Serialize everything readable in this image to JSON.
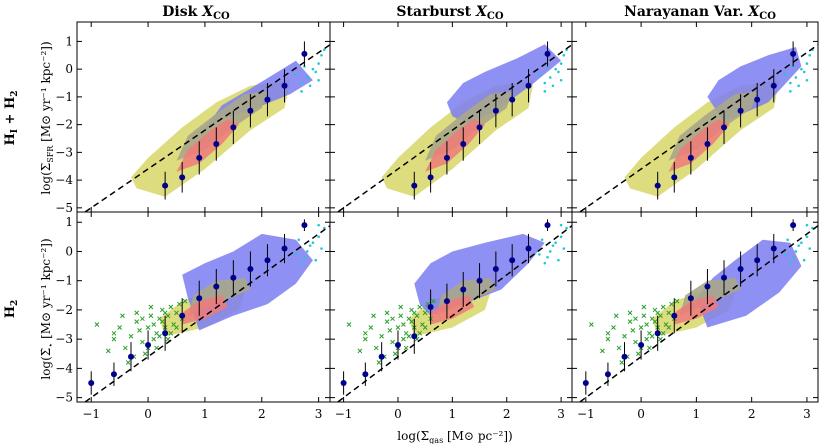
{
  "figure": {
    "columns": [
      "Disk X_CO",
      "Starburst X_CO",
      "Narayanan Var. X_CO"
    ],
    "column_titles": [
      {
        "main": "Disk ",
        "var": "X",
        "sub": "CO"
      },
      {
        "main": "Starburst ",
        "var": "X",
        "sub": "CO"
      },
      {
        "main": "Narayanan Var. ",
        "var": "X",
        "sub": "CO"
      }
    ],
    "rows": [
      {
        "label_main": "H",
        "label_sub1": "I",
        "label_plus": " + H",
        "label_sub2": "2",
        "ylabel": "log(Σ_SFR [M⊙ yr⁻¹ kpc⁻²])",
        "ylabel_left": "log(Σ",
        "ylabel_sub": "SFR",
        "ylabel_right": " [M⊙ yr⁻¹ kpc⁻²])"
      },
      {
        "label_main": "H",
        "label_sub1": "",
        "label_plus": "",
        "label_sub2": "2",
        "ylabel": "log(Σ̇_⋆ [M⊙ yr⁻¹ kpc⁻²])",
        "ylabel_left": "log(Σ̇",
        "ylabel_sub": "⋆",
        "ylabel_right": " [M⊙ yr⁻¹ kpc⁻²])"
      }
    ],
    "xlabel": "log(Σ_gas [M⊙ pc⁻²])",
    "xlabel_left": "log(Σ",
    "xlabel_sub": "gas",
    "xlabel_right": " [M⊙ pc⁻²])",
    "x_tick_labels": [
      "−1",
      "0",
      "1",
      "2",
      "3"
    ],
    "y_tick_labels_top": [
      "1",
      "0",
      "−1",
      "−2",
      "−3",
      "−4",
      "−5"
    ],
    "y_tick_labels_bottom": [
      "1",
      "0",
      "−1",
      "−2",
      "−3",
      "−4",
      "−5"
    ]
  },
  "colors": {
    "yellow": "#d9d870",
    "blue": "#7b7cf2",
    "red": "#f07a7a",
    "gray": "#a8a68a",
    "points": "#00008b",
    "cyan": "#20c8d2",
    "green": "#28a028",
    "line": "#000000"
  },
  "chart_data": {
    "type": "scatter",
    "xlim": [
      -1.25,
      3.2
    ],
    "ylim_top": [
      -5.15,
      1.7
    ],
    "ylim_bottom": [
      -5.15,
      1.35
    ],
    "reference_line": {
      "slope": 1.4,
      "intercept": -3.6,
      "style": "dashed"
    },
    "binned_points": {
      "x": [
        -1.0,
        -0.6,
        -0.3,
        0.0,
        0.3,
        0.6,
        0.9,
        1.2,
        1.5,
        1.8,
        2.1,
        2.4,
        2.75
      ],
      "top_disk": [
        null,
        null,
        null,
        null,
        -4.2,
        -3.9,
        -3.2,
        -2.7,
        -2.1,
        -1.5,
        -1.1,
        -0.6,
        0.55
      ],
      "top_sb": [
        null,
        null,
        null,
        null,
        -4.2,
        -3.9,
        -3.2,
        -2.7,
        -2.1,
        -1.5,
        -1.1,
        -0.6,
        0.55
      ],
      "top_nar": [
        null,
        null,
        null,
        null,
        -4.2,
        -3.9,
        -3.2,
        -2.7,
        -2.1,
        -1.5,
        -1.1,
        -0.6,
        0.55
      ],
      "bottom_disk": [
        -4.5,
        -4.2,
        -3.6,
        -3.2,
        -2.8,
        -2.2,
        -1.6,
        -1.2,
        -0.9,
        -0.6,
        -0.3,
        0.1,
        0.9
      ],
      "bottom_sb": [
        -4.5,
        -4.2,
        -3.6,
        -3.2,
        -2.9,
        -1.9,
        -1.7,
        -1.3,
        -1.0,
        -0.6,
        -0.3,
        0.1,
        0.9
      ],
      "bottom_nar": [
        -4.5,
        -4.2,
        -3.6,
        -3.2,
        -2.8,
        -2.2,
        -1.6,
        -1.2,
        -0.9,
        -0.6,
        -0.3,
        0.1,
        0.9
      ],
      "err_top": [
        0,
        0,
        0,
        0,
        0.5,
        0.55,
        0.6,
        0.6,
        0.6,
        0.6,
        0.6,
        0.6,
        0.45
      ],
      "err_bottom": [
        0.4,
        0.4,
        0.5,
        0.5,
        0.6,
        0.6,
        0.6,
        0.6,
        0.6,
        0.6,
        0.55,
        0.5,
        0.2
      ]
    },
    "top_regions": {
      "yellow": [
        [
          -0.2,
          -4.3
        ],
        [
          0.3,
          -4.6
        ],
        [
          1.0,
          -3.6
        ],
        [
          1.8,
          -2.2
        ],
        [
          2.4,
          -1.4
        ],
        [
          2.5,
          -0.4
        ],
        [
          1.8,
          -0.6
        ],
        [
          1.2,
          -1.2
        ],
        [
          0.6,
          -2.1
        ],
        [
          0.0,
          -3.2
        ],
        [
          -0.3,
          -3.9
        ]
      ],
      "gray": [
        [
          0.5,
          -3.3
        ],
        [
          1.0,
          -2.9
        ],
        [
          1.5,
          -2.1
        ],
        [
          2.0,
          -1.4
        ],
        [
          2.1,
          -0.8
        ],
        [
          1.7,
          -0.9
        ],
        [
          1.2,
          -1.6
        ],
        [
          0.7,
          -2.4
        ]
      ],
      "red": [
        [
          0.5,
          -3.7
        ],
        [
          0.9,
          -3.4
        ],
        [
          1.3,
          -2.7
        ],
        [
          1.6,
          -2.0
        ],
        [
          1.4,
          -1.8
        ],
        [
          1.1,
          -2.2
        ],
        [
          0.7,
          -2.9
        ]
      ],
      "blue_disk": [
        [
          0.9,
          -2.4
        ],
        [
          1.3,
          -1.8
        ],
        [
          1.9,
          -1.4
        ],
        [
          2.5,
          -0.9
        ],
        [
          2.9,
          -0.4
        ],
        [
          2.6,
          0.3
        ],
        [
          2.2,
          -0.2
        ],
        [
          1.8,
          -0.7
        ],
        [
          1.3,
          -1.3
        ]
      ],
      "blue_sb": [
        [
          1.3,
          -2.0
        ],
        [
          1.8,
          -1.5
        ],
        [
          2.5,
          -0.5
        ],
        [
          3.0,
          0.3
        ],
        [
          2.7,
          0.9
        ],
        [
          2.2,
          0.4
        ],
        [
          1.6,
          -0.1
        ],
        [
          1.2,
          -0.5
        ],
        [
          0.9,
          -1.2
        ],
        [
          1.0,
          -1.7
        ]
      ],
      "blue_nar": [
        [
          1.5,
          -1.9
        ],
        [
          2.3,
          -1.2
        ],
        [
          2.9,
          0.1
        ],
        [
          2.8,
          0.8
        ],
        [
          2.3,
          0.5
        ],
        [
          1.8,
          0.1
        ],
        [
          1.4,
          -0.4
        ],
        [
          1.2,
          -1.0
        ]
      ]
    },
    "bottom_regions": {
      "yellow": [
        [
          0.3,
          -2.9
        ],
        [
          1.0,
          -2.6
        ],
        [
          1.6,
          -2.0
        ],
        [
          1.7,
          -1.4
        ],
        [
          1.2,
          -1.3
        ],
        [
          0.6,
          -1.7
        ],
        [
          0.2,
          -2.3
        ]
      ],
      "gray": [
        [
          0.7,
          -2.2
        ],
        [
          1.3,
          -1.7
        ],
        [
          1.8,
          -1.3
        ],
        [
          1.7,
          -0.9
        ],
        [
          1.2,
          -1.0
        ],
        [
          0.8,
          -1.5
        ]
      ],
      "red": [
        [
          0.6,
          -2.5
        ],
        [
          1.0,
          -2.3
        ],
        [
          1.4,
          -1.9
        ],
        [
          1.3,
          -1.5
        ],
        [
          0.9,
          -1.7
        ],
        [
          0.6,
          -2.1
        ]
      ],
      "blue_disk": [
        [
          0.9,
          -2.7
        ],
        [
          1.5,
          -2.2
        ],
        [
          2.1,
          -1.8
        ],
        [
          2.6,
          -1.1
        ],
        [
          2.9,
          -0.3
        ],
        [
          2.6,
          0.4
        ],
        [
          2.0,
          0.6
        ],
        [
          1.5,
          0.0
        ],
        [
          1.0,
          -0.4
        ],
        [
          0.6,
          -0.8
        ],
        [
          0.7,
          -1.6
        ]
      ],
      "blue_sb": [
        [
          0.6,
          -2.2
        ],
        [
          1.2,
          -1.8
        ],
        [
          1.9,
          -1.3
        ],
        [
          2.4,
          -0.4
        ],
        [
          2.7,
          0.3
        ],
        [
          2.3,
          0.6
        ],
        [
          1.6,
          0.3
        ],
        [
          1.0,
          0.0
        ],
        [
          0.6,
          -0.4
        ],
        [
          0.3,
          -1.1
        ],
        [
          0.4,
          -1.8
        ]
      ],
      "blue_nar": [
        [
          1.2,
          -2.6
        ],
        [
          1.9,
          -2.2
        ],
        [
          2.5,
          -1.4
        ],
        [
          2.9,
          -0.5
        ],
        [
          2.7,
          0.3
        ],
        [
          2.2,
          0.4
        ],
        [
          1.7,
          -0.3
        ],
        [
          1.3,
          -0.9
        ],
        [
          1.0,
          -1.6
        ]
      ]
    },
    "cyan_points_top": [
      [
        2.6,
        -0.2
      ],
      [
        2.7,
        -0.5
      ],
      [
        2.8,
        -0.3
      ],
      [
        2.9,
        0.0
      ],
      [
        3.0,
        0.2
      ],
      [
        3.05,
        0.5
      ],
      [
        2.75,
        0.1
      ],
      [
        2.85,
        -0.6
      ],
      [
        2.95,
        -0.1
      ],
      [
        3.1,
        0.7
      ],
      [
        2.7,
        -0.8
      ],
      [
        3.0,
        -0.4
      ]
    ],
    "cyan_points_bottom": [
      [
        2.6,
        -0.1
      ],
      [
        2.7,
        -0.4
      ],
      [
        2.8,
        0.0
      ],
      [
        2.9,
        0.3
      ],
      [
        3.0,
        0.5
      ],
      [
        3.1,
        0.8
      ],
      [
        2.75,
        -0.2
      ],
      [
        2.85,
        0.2
      ],
      [
        2.95,
        -0.3
      ],
      [
        3.05,
        0.1
      ],
      [
        2.65,
        0.4
      ],
      [
        3.0,
        0.9
      ]
    ],
    "green_crosses": [
      [
        -0.9,
        -2.5
      ],
      [
        -0.7,
        -3.4
      ],
      [
        -0.6,
        -3.0
      ],
      [
        -0.5,
        -2.6
      ],
      [
        -0.4,
        -3.3
      ],
      [
        -0.3,
        -2.9
      ],
      [
        -0.2,
        -2.4
      ],
      [
        -0.1,
        -3.1
      ],
      [
        0.0,
        -2.6
      ],
      [
        0.05,
        -2.2
      ],
      [
        0.1,
        -3.0
      ],
      [
        0.15,
        -2.8
      ],
      [
        0.2,
        -2.3
      ],
      [
        0.25,
        -2.0
      ],
      [
        0.3,
        -2.6
      ],
      [
        0.35,
        -2.2
      ],
      [
        0.4,
        -1.9
      ],
      [
        0.45,
        -2.5
      ],
      [
        0.5,
        -2.1
      ],
      [
        0.55,
        -1.8
      ],
      [
        -0.25,
        -3.6
      ],
      [
        -0.15,
        -2.7
      ],
      [
        -0.05,
        -3.5
      ],
      [
        0.0,
        -3.3
      ],
      [
        0.1,
        -2.5
      ],
      [
        0.2,
        -2.9
      ],
      [
        0.3,
        -2.1
      ],
      [
        0.4,
        -2.8
      ],
      [
        0.6,
        -2.3
      ],
      [
        0.65,
        -1.7
      ],
      [
        -0.45,
        -2.2
      ],
      [
        -0.35,
        -3.8
      ],
      [
        -0.2,
        -2.1
      ],
      [
        0.05,
        -1.9
      ],
      [
        0.15,
        -3.3
      ],
      [
        0.25,
        -2.4
      ],
      [
        0.35,
        -3.0
      ],
      [
        0.5,
        -2.6
      ],
      [
        -0.6,
        -2.8
      ],
      [
        -0.1,
        -2.3
      ]
    ]
  }
}
